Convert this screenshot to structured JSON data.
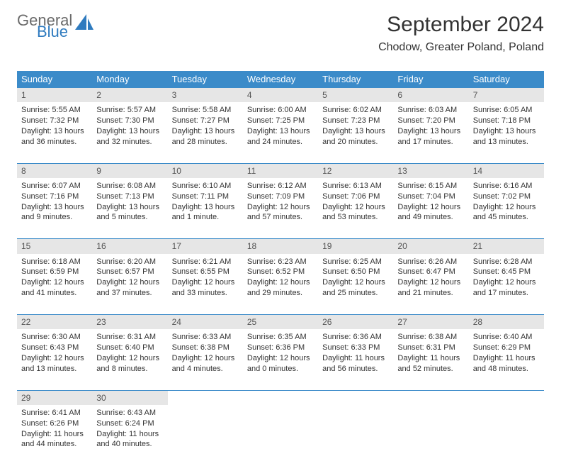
{
  "brand": {
    "word1": "General",
    "word2": "Blue"
  },
  "title": "September 2024",
  "location": "Chodow, Greater Poland, Poland",
  "colors": {
    "header_bg": "#3b8bc9",
    "header_text": "#ffffff",
    "daynum_bg": "#e6e6e6",
    "border": "#3b8bc9",
    "text": "#333333",
    "brand_gray": "#6a6a6a",
    "brand_blue": "#2f7bbf",
    "page_bg": "#ffffff"
  },
  "typography": {
    "title_fontsize": 30,
    "location_fontsize": 16,
    "weekday_fontsize": 13,
    "daynum_fontsize": 12,
    "cell_fontsize": 11
  },
  "weekdays": [
    "Sunday",
    "Monday",
    "Tuesday",
    "Wednesday",
    "Thursday",
    "Friday",
    "Saturday"
  ],
  "weeks": [
    [
      {
        "num": "1",
        "sunrise": "Sunrise: 5:55 AM",
        "sunset": "Sunset: 7:32 PM",
        "daylight": "Daylight: 13 hours and 36 minutes."
      },
      {
        "num": "2",
        "sunrise": "Sunrise: 5:57 AM",
        "sunset": "Sunset: 7:30 PM",
        "daylight": "Daylight: 13 hours and 32 minutes."
      },
      {
        "num": "3",
        "sunrise": "Sunrise: 5:58 AM",
        "sunset": "Sunset: 7:27 PM",
        "daylight": "Daylight: 13 hours and 28 minutes."
      },
      {
        "num": "4",
        "sunrise": "Sunrise: 6:00 AM",
        "sunset": "Sunset: 7:25 PM",
        "daylight": "Daylight: 13 hours and 24 minutes."
      },
      {
        "num": "5",
        "sunrise": "Sunrise: 6:02 AM",
        "sunset": "Sunset: 7:23 PM",
        "daylight": "Daylight: 13 hours and 20 minutes."
      },
      {
        "num": "6",
        "sunrise": "Sunrise: 6:03 AM",
        "sunset": "Sunset: 7:20 PM",
        "daylight": "Daylight: 13 hours and 17 minutes."
      },
      {
        "num": "7",
        "sunrise": "Sunrise: 6:05 AM",
        "sunset": "Sunset: 7:18 PM",
        "daylight": "Daylight: 13 hours and 13 minutes."
      }
    ],
    [
      {
        "num": "8",
        "sunrise": "Sunrise: 6:07 AM",
        "sunset": "Sunset: 7:16 PM",
        "daylight": "Daylight: 13 hours and 9 minutes."
      },
      {
        "num": "9",
        "sunrise": "Sunrise: 6:08 AM",
        "sunset": "Sunset: 7:13 PM",
        "daylight": "Daylight: 13 hours and 5 minutes."
      },
      {
        "num": "10",
        "sunrise": "Sunrise: 6:10 AM",
        "sunset": "Sunset: 7:11 PM",
        "daylight": "Daylight: 13 hours and 1 minute."
      },
      {
        "num": "11",
        "sunrise": "Sunrise: 6:12 AM",
        "sunset": "Sunset: 7:09 PM",
        "daylight": "Daylight: 12 hours and 57 minutes."
      },
      {
        "num": "12",
        "sunrise": "Sunrise: 6:13 AM",
        "sunset": "Sunset: 7:06 PM",
        "daylight": "Daylight: 12 hours and 53 minutes."
      },
      {
        "num": "13",
        "sunrise": "Sunrise: 6:15 AM",
        "sunset": "Sunset: 7:04 PM",
        "daylight": "Daylight: 12 hours and 49 minutes."
      },
      {
        "num": "14",
        "sunrise": "Sunrise: 6:16 AM",
        "sunset": "Sunset: 7:02 PM",
        "daylight": "Daylight: 12 hours and 45 minutes."
      }
    ],
    [
      {
        "num": "15",
        "sunrise": "Sunrise: 6:18 AM",
        "sunset": "Sunset: 6:59 PM",
        "daylight": "Daylight: 12 hours and 41 minutes."
      },
      {
        "num": "16",
        "sunrise": "Sunrise: 6:20 AM",
        "sunset": "Sunset: 6:57 PM",
        "daylight": "Daylight: 12 hours and 37 minutes."
      },
      {
        "num": "17",
        "sunrise": "Sunrise: 6:21 AM",
        "sunset": "Sunset: 6:55 PM",
        "daylight": "Daylight: 12 hours and 33 minutes."
      },
      {
        "num": "18",
        "sunrise": "Sunrise: 6:23 AM",
        "sunset": "Sunset: 6:52 PM",
        "daylight": "Daylight: 12 hours and 29 minutes."
      },
      {
        "num": "19",
        "sunrise": "Sunrise: 6:25 AM",
        "sunset": "Sunset: 6:50 PM",
        "daylight": "Daylight: 12 hours and 25 minutes."
      },
      {
        "num": "20",
        "sunrise": "Sunrise: 6:26 AM",
        "sunset": "Sunset: 6:47 PM",
        "daylight": "Daylight: 12 hours and 21 minutes."
      },
      {
        "num": "21",
        "sunrise": "Sunrise: 6:28 AM",
        "sunset": "Sunset: 6:45 PM",
        "daylight": "Daylight: 12 hours and 17 minutes."
      }
    ],
    [
      {
        "num": "22",
        "sunrise": "Sunrise: 6:30 AM",
        "sunset": "Sunset: 6:43 PM",
        "daylight": "Daylight: 12 hours and 13 minutes."
      },
      {
        "num": "23",
        "sunrise": "Sunrise: 6:31 AM",
        "sunset": "Sunset: 6:40 PM",
        "daylight": "Daylight: 12 hours and 8 minutes."
      },
      {
        "num": "24",
        "sunrise": "Sunrise: 6:33 AM",
        "sunset": "Sunset: 6:38 PM",
        "daylight": "Daylight: 12 hours and 4 minutes."
      },
      {
        "num": "25",
        "sunrise": "Sunrise: 6:35 AM",
        "sunset": "Sunset: 6:36 PM",
        "daylight": "Daylight: 12 hours and 0 minutes."
      },
      {
        "num": "26",
        "sunrise": "Sunrise: 6:36 AM",
        "sunset": "Sunset: 6:33 PM",
        "daylight": "Daylight: 11 hours and 56 minutes."
      },
      {
        "num": "27",
        "sunrise": "Sunrise: 6:38 AM",
        "sunset": "Sunset: 6:31 PM",
        "daylight": "Daylight: 11 hours and 52 minutes."
      },
      {
        "num": "28",
        "sunrise": "Sunrise: 6:40 AM",
        "sunset": "Sunset: 6:29 PM",
        "daylight": "Daylight: 11 hours and 48 minutes."
      }
    ],
    [
      {
        "num": "29",
        "sunrise": "Sunrise: 6:41 AM",
        "sunset": "Sunset: 6:26 PM",
        "daylight": "Daylight: 11 hours and 44 minutes."
      },
      {
        "num": "30",
        "sunrise": "Sunrise: 6:43 AM",
        "sunset": "Sunset: 6:24 PM",
        "daylight": "Daylight: 11 hours and 40 minutes."
      },
      null,
      null,
      null,
      null,
      null
    ]
  ]
}
